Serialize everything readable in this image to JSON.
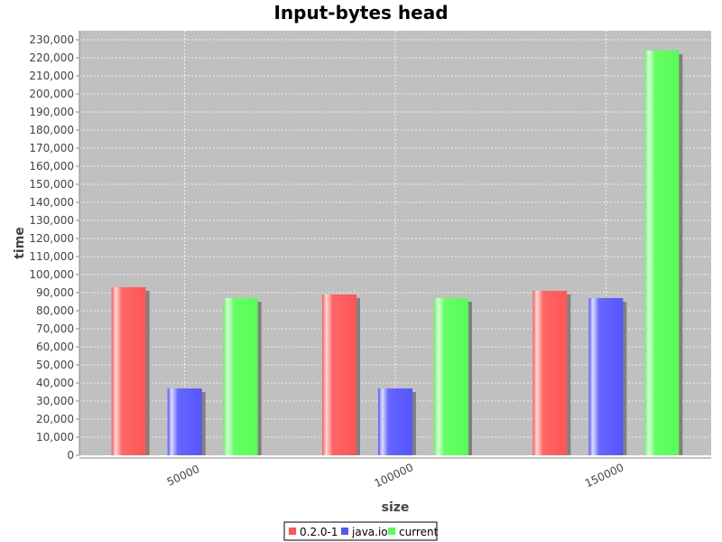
{
  "chart_data": {
    "type": "bar",
    "title": "Input-bytes head",
    "xlabel": "size",
    "ylabel": "time",
    "categories": [
      "50000",
      "100000",
      "150000"
    ],
    "series": [
      {
        "name": "0.2.0-1",
        "color": "#ff5555",
        "values": [
          93000,
          89000,
          91000
        ]
      },
      {
        "name": "java.io",
        "color": "#5555ff",
        "values": [
          37000,
          37000,
          87000
        ]
      },
      {
        "name": "current",
        "color": "#55ff55",
        "values": [
          87000,
          87000,
          224000
        ]
      }
    ],
    "ylim": [
      0,
      235000
    ],
    "ytick_step": 10000,
    "grid": true,
    "plot_background": "#c0c0c0",
    "legend_position": "bottom"
  }
}
